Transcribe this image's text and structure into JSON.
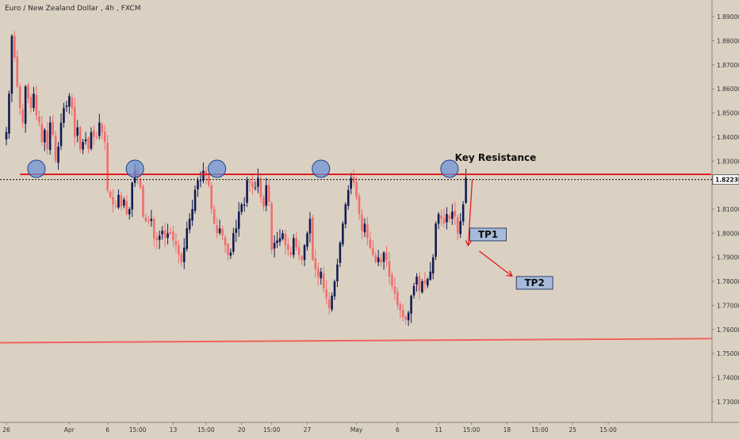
{
  "header": {
    "symbol": "Euro / New Zealand Dollar",
    "interval": "4h",
    "exchange": "FXCM"
  },
  "chart_data": {
    "type": "candlestick",
    "ylim": [
      1.725,
      1.893
    ],
    "price_ticks": [
      "1.89000",
      "1.88000",
      "1.87000",
      "1.86000",
      "1.85000",
      "1.84000",
      "1.83000",
      "1.82230",
      "1.81000",
      "1.80000",
      "1.79000",
      "1.78000",
      "1.77000",
      "1.76000",
      "1.75000",
      "1.74000",
      "1.73000"
    ],
    "price_tick_values": [
      1.89,
      1.88,
      1.87,
      1.86,
      1.85,
      1.84,
      1.83,
      1.8223,
      1.81,
      1.8,
      1.79,
      1.78,
      1.77,
      1.76,
      1.75,
      1.74,
      1.73
    ],
    "current_price_label": "1.82230",
    "current_price": 1.8223,
    "time_labels": [
      "26",
      "Apr",
      "6",
      "15:00",
      "13",
      "15:00",
      "20",
      "15:00",
      "27",
      "May",
      "6",
      "11",
      "15:00",
      "18",
      "15:00",
      "25",
      "15:00"
    ],
    "time_label_bars": [
      0,
      23,
      37,
      48,
      61,
      73,
      86,
      97,
      110,
      128,
      143,
      158,
      170,
      183,
      195,
      207,
      220
    ],
    "colors": {
      "up": "#131c52",
      "down": "#f26d6d",
      "resistance": "#e01e1e",
      "support": "#f06262",
      "circle_fill": "#6f93d6",
      "circle_stroke": "#1d3f8c"
    },
    "closes": [
      1.842,
      1.858,
      1.882,
      1.873,
      1.861,
      1.852,
      1.846,
      1.861,
      1.856,
      1.852,
      1.858,
      1.849,
      1.846,
      1.838,
      1.843,
      1.835,
      1.846,
      1.841,
      1.83,
      1.836,
      1.846,
      1.852,
      1.853,
      1.857,
      1.852,
      1.84,
      1.844,
      1.835,
      1.838,
      1.839,
      1.835,
      1.842,
      1.84,
      1.84,
      1.846,
      1.842,
      1.838,
      1.818,
      1.815,
      1.812,
      1.811,
      1.816,
      1.811,
      1.814,
      1.808,
      1.81,
      1.821,
      1.826,
      1.823,
      1.819,
      1.807,
      1.805,
      1.805,
      1.806,
      1.798,
      1.797,
      1.799,
      1.801,
      1.798,
      1.8,
      1.8,
      1.797,
      1.795,
      1.791,
      1.788,
      1.794,
      1.802,
      1.806,
      1.81,
      1.818,
      1.822,
      1.822,
      1.826,
      1.824,
      1.82,
      1.81,
      1.804,
      1.8,
      1.802,
      1.799,
      1.795,
      1.791,
      1.792,
      1.8,
      1.802,
      1.809,
      1.812,
      1.812,
      1.822,
      1.821,
      1.819,
      1.819,
      1.823,
      1.815,
      1.811,
      1.82,
      1.813,
      1.793,
      1.796,
      1.797,
      1.798,
      1.8,
      1.795,
      1.793,
      1.791,
      1.798,
      1.794,
      1.791,
      1.789,
      1.795,
      1.8,
      1.806,
      1.789,
      1.785,
      1.782,
      1.784,
      1.777,
      1.773,
      1.769,
      1.774,
      1.78,
      1.787,
      1.796,
      1.804,
      1.812,
      1.818,
      1.823,
      1.821,
      1.815,
      1.808,
      1.801,
      1.804,
      1.798,
      1.794,
      1.791,
      1.788,
      1.79,
      1.788,
      1.792,
      1.789,
      1.782,
      1.778,
      1.775,
      1.77,
      1.768,
      1.765,
      1.764,
      1.767,
      1.774,
      1.778,
      1.782,
      1.776,
      1.78,
      1.779,
      1.781,
      1.784,
      1.79,
      1.804,
      1.808,
      1.806,
      1.804,
      1.808,
      1.806,
      1.809,
      1.807,
      1.8,
      1.805,
      1.812,
      1.823
    ],
    "resistance": {
      "label": "Key Resistance",
      "level": 1.8245
    },
    "support": {
      "level_start": 1.7545,
      "level_end": 1.7562
    },
    "touch_bars": [
      11,
      47,
      77,
      115,
      162
    ],
    "targets": [
      {
        "label": "TP1",
        "bar": 170,
        "price": 1.7998
      },
      {
        "label": "TP2",
        "bar": 187,
        "price": 1.7797
      }
    ]
  }
}
